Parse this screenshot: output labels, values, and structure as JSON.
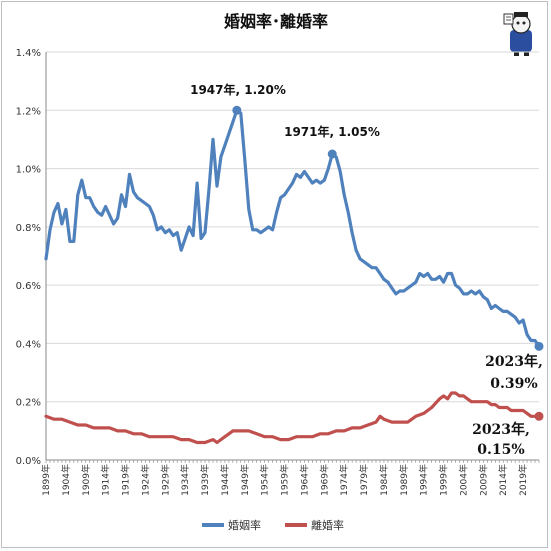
{
  "chart_data": {
    "type": "line",
    "title": "婚姻率･離婚率",
    "xlabel": "",
    "ylabel": "",
    "ylim": [
      0,
      1.4
    ],
    "yticks": [
      "0.0%",
      "0.2%",
      "0.4%",
      "0.6%",
      "0.8%",
      "1.0%",
      "1.2%",
      "1.4%"
    ],
    "xlim": [
      1899,
      2023
    ],
    "xtick_labels": [
      "1899年",
      "1904年",
      "1909年",
      "1914年",
      "1919年",
      "1924年",
      "1929年",
      "1934年",
      "1939年",
      "1944年",
      "1949年",
      "1954年",
      "1959年",
      "1964年",
      "1969年",
      "1974年",
      "1979年",
      "1984年",
      "1989年",
      "1994年",
      "1999年",
      "2004年",
      "2009年",
      "2014年",
      "2019年"
    ],
    "grid": true,
    "legend_position": "bottom",
    "series": [
      {
        "name": "婚姻率",
        "color": "#4f81bd",
        "points": [
          [
            1899,
            0.69
          ],
          [
            1900,
            0.79
          ],
          [
            1901,
            0.85
          ],
          [
            1902,
            0.88
          ],
          [
            1903,
            0.81
          ],
          [
            1904,
            0.86
          ],
          [
            1905,
            0.75
          ],
          [
            1906,
            0.75
          ],
          [
            1907,
            0.91
          ],
          [
            1908,
            0.96
          ],
          [
            1909,
            0.9
          ],
          [
            1910,
            0.9
          ],
          [
            1911,
            0.87
          ],
          [
            1912,
            0.85
          ],
          [
            1913,
            0.84
          ],
          [
            1914,
            0.87
          ],
          [
            1915,
            0.84
          ],
          [
            1916,
            0.81
          ],
          [
            1917,
            0.83
          ],
          [
            1918,
            0.91
          ],
          [
            1919,
            0.87
          ],
          [
            1920,
            0.98
          ],
          [
            1921,
            0.92
          ],
          [
            1922,
            0.9
          ],
          [
            1923,
            0.89
          ],
          [
            1924,
            0.88
          ],
          [
            1925,
            0.87
          ],
          [
            1926,
            0.84
          ],
          [
            1927,
            0.79
          ],
          [
            1928,
            0.8
          ],
          [
            1929,
            0.78
          ],
          [
            1930,
            0.79
          ],
          [
            1931,
            0.77
          ],
          [
            1932,
            0.78
          ],
          [
            1933,
            0.72
          ],
          [
            1934,
            0.76
          ],
          [
            1935,
            0.8
          ],
          [
            1936,
            0.77
          ],
          [
            1937,
            0.95
          ],
          [
            1938,
            0.76
          ],
          [
            1939,
            0.78
          ],
          [
            1940,
            0.93
          ],
          [
            1941,
            1.1
          ],
          [
            1942,
            0.94
          ],
          [
            1943,
            1.04
          ],
          [
            1944,
            1.08
          ],
          [
            1945,
            1.12
          ],
          [
            1946,
            1.16
          ],
          [
            1947,
            1.2
          ],
          [
            1948,
            1.19
          ],
          [
            1949,
            1.03
          ],
          [
            1950,
            0.86
          ],
          [
            1951,
            0.79
          ],
          [
            1952,
            0.79
          ],
          [
            1953,
            0.78
          ],
          [
            1954,
            0.79
          ],
          [
            1955,
            0.8
          ],
          [
            1956,
            0.79
          ],
          [
            1957,
            0.85
          ],
          [
            1958,
            0.9
          ],
          [
            1959,
            0.91
          ],
          [
            1960,
            0.93
          ],
          [
            1961,
            0.95
          ],
          [
            1962,
            0.98
          ],
          [
            1963,
            0.97
          ],
          [
            1964,
            0.99
          ],
          [
            1965,
            0.97
          ],
          [
            1966,
            0.95
          ],
          [
            1967,
            0.96
          ],
          [
            1968,
            0.95
          ],
          [
            1969,
            0.96
          ],
          [
            1970,
            1.0
          ],
          [
            1971,
            1.05
          ],
          [
            1972,
            1.04
          ],
          [
            1973,
            0.99
          ],
          [
            1974,
            0.91
          ],
          [
            1975,
            0.85
          ],
          [
            1976,
            0.78
          ],
          [
            1977,
            0.72
          ],
          [
            1978,
            0.69
          ],
          [
            1979,
            0.68
          ],
          [
            1980,
            0.67
          ],
          [
            1981,
            0.66
          ],
          [
            1982,
            0.66
          ],
          [
            1983,
            0.64
          ],
          [
            1984,
            0.62
          ],
          [
            1985,
            0.61
          ],
          [
            1986,
            0.59
          ],
          [
            1987,
            0.57
          ],
          [
            1988,
            0.58
          ],
          [
            1989,
            0.58
          ],
          [
            1990,
            0.59
          ],
          [
            1991,
            0.6
          ],
          [
            1992,
            0.61
          ],
          [
            1993,
            0.64
          ],
          [
            1994,
            0.63
          ],
          [
            1995,
            0.64
          ],
          [
            1996,
            0.62
          ],
          [
            1997,
            0.62
          ],
          [
            1998,
            0.63
          ],
          [
            1999,
            0.61
          ],
          [
            2000,
            0.64
          ],
          [
            2001,
            0.64
          ],
          [
            2002,
            0.6
          ],
          [
            2003,
            0.59
          ],
          [
            2004,
            0.57
          ],
          [
            2005,
            0.57
          ],
          [
            2006,
            0.58
          ],
          [
            2007,
            0.57
          ],
          [
            2008,
            0.58
          ],
          [
            2009,
            0.56
          ],
          [
            2010,
            0.55
          ],
          [
            2011,
            0.52
          ],
          [
            2012,
            0.53
          ],
          [
            2013,
            0.52
          ],
          [
            2014,
            0.51
          ],
          [
            2015,
            0.51
          ],
          [
            2016,
            0.5
          ],
          [
            2017,
            0.49
          ],
          [
            2018,
            0.47
          ],
          [
            2019,
            0.48
          ],
          [
            2020,
            0.43
          ],
          [
            2021,
            0.41
          ],
          [
            2022,
            0.41
          ],
          [
            2023,
            0.39
          ]
        ]
      },
      {
        "name": "離婚率",
        "color": "#c0504d",
        "points": [
          [
            1899,
            0.15
          ],
          [
            1901,
            0.14
          ],
          [
            1903,
            0.14
          ],
          [
            1905,
            0.13
          ],
          [
            1907,
            0.12
          ],
          [
            1909,
            0.12
          ],
          [
            1911,
            0.11
          ],
          [
            1913,
            0.11
          ],
          [
            1915,
            0.11
          ],
          [
            1917,
            0.1
          ],
          [
            1919,
            0.1
          ],
          [
            1921,
            0.09
          ],
          [
            1923,
            0.09
          ],
          [
            1925,
            0.08
          ],
          [
            1927,
            0.08
          ],
          [
            1929,
            0.08
          ],
          [
            1931,
            0.08
          ],
          [
            1933,
            0.07
          ],
          [
            1935,
            0.07
          ],
          [
            1937,
            0.06
          ],
          [
            1939,
            0.06
          ],
          [
            1941,
            0.07
          ],
          [
            1942,
            0.06
          ],
          [
            1943,
            0.07
          ],
          [
            1944,
            0.08
          ],
          [
            1945,
            0.09
          ],
          [
            1946,
            0.1
          ],
          [
            1947,
            0.1
          ],
          [
            1948,
            0.1
          ],
          [
            1949,
            0.1
          ],
          [
            1950,
            0.1
          ],
          [
            1952,
            0.09
          ],
          [
            1954,
            0.08
          ],
          [
            1956,
            0.08
          ],
          [
            1958,
            0.07
          ],
          [
            1960,
            0.07
          ],
          [
            1962,
            0.08
          ],
          [
            1964,
            0.08
          ],
          [
            1966,
            0.08
          ],
          [
            1968,
            0.09
          ],
          [
            1970,
            0.09
          ],
          [
            1972,
            0.1
          ],
          [
            1974,
            0.1
          ],
          [
            1976,
            0.11
          ],
          [
            1978,
            0.11
          ],
          [
            1980,
            0.12
          ],
          [
            1982,
            0.13
          ],
          [
            1983,
            0.15
          ],
          [
            1984,
            0.14
          ],
          [
            1986,
            0.13
          ],
          [
            1988,
            0.13
          ],
          [
            1990,
            0.13
          ],
          [
            1992,
            0.15
          ],
          [
            1994,
            0.16
          ],
          [
            1996,
            0.18
          ],
          [
            1998,
            0.21
          ],
          [
            1999,
            0.22
          ],
          [
            2000,
            0.21
          ],
          [
            2001,
            0.23
          ],
          [
            2002,
            0.23
          ],
          [
            2003,
            0.22
          ],
          [
            2004,
            0.22
          ],
          [
            2005,
            0.21
          ],
          [
            2006,
            0.2
          ],
          [
            2007,
            0.2
          ],
          [
            2008,
            0.2
          ],
          [
            2009,
            0.2
          ],
          [
            2010,
            0.2
          ],
          [
            2011,
            0.19
          ],
          [
            2012,
            0.19
          ],
          [
            2013,
            0.18
          ],
          [
            2014,
            0.18
          ],
          [
            2015,
            0.18
          ],
          [
            2016,
            0.17
          ],
          [
            2017,
            0.17
          ],
          [
            2018,
            0.17
          ],
          [
            2019,
            0.17
          ],
          [
            2020,
            0.16
          ],
          [
            2021,
            0.15
          ],
          [
            2022,
            0.15
          ],
          [
            2023,
            0.15
          ]
        ]
      }
    ],
    "markers": [
      {
        "series": 0,
        "x": 1947,
        "y": 1.2
      },
      {
        "series": 0,
        "x": 1971,
        "y": 1.05
      },
      {
        "series": 0,
        "x": 2023,
        "y": 0.39
      },
      {
        "series": 1,
        "x": 2023,
        "y": 0.15
      }
    ],
    "annotations": [
      {
        "id": "ann-1947",
        "text": "1947年, 1.20%"
      },
      {
        "id": "ann-1971",
        "text": "1971年, 1.05%"
      },
      {
        "id": "ann-2023-marriage",
        "lines": [
          "2023年,",
          "0.39%"
        ]
      },
      {
        "id": "ann-2023-divorce",
        "lines": [
          "2023年,",
          "0.15%"
        ]
      }
    ]
  }
}
